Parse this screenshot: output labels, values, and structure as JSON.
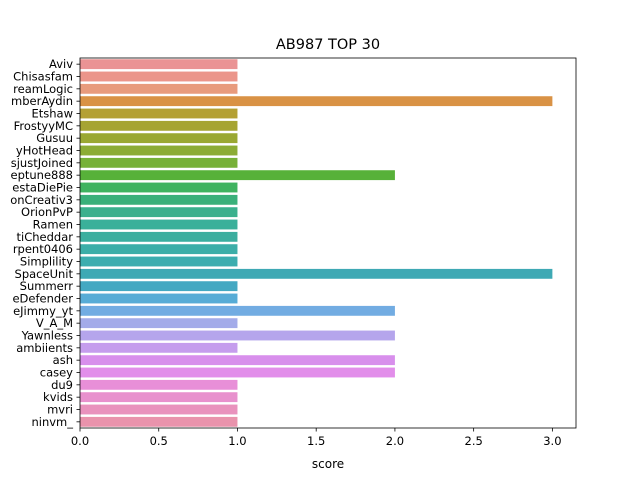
{
  "chart_data": {
    "type": "bar",
    "orientation": "horizontal",
    "title": "AB987 TOP 30",
    "xlabel": "score",
    "ylabel": "",
    "xlim": [
      0,
      3.15
    ],
    "xticks": [
      0.0,
      0.5,
      1.0,
      1.5,
      2.0,
      2.5,
      3.0
    ],
    "xtick_labels": [
      "0.0",
      "0.5",
      "1.0",
      "1.5",
      "2.0",
      "2.5",
      "3.0"
    ],
    "grid": false,
    "legend": "none",
    "categories": [
      "Aviv",
      "Chisasfam",
      "reamLogic",
      "mberAydin",
      "Etshaw",
      "FrostyyMC",
      "Gusuu",
      "yHotHead",
      "sjustJoined",
      "eptune888",
      "estaDiePie",
      "onCreativ3",
      "OrionPvP",
      "Ramen",
      "tiCheddar",
      "rpent0406",
      "Simplility",
      "SpaceUnit",
      "Summerr",
      "eDefender",
      "eJimmy_yt",
      "V_A_M",
      "Yawnless",
      "ambiients",
      "ash",
      "casey",
      "du9",
      "kvids",
      "mvri",
      "ninvm_"
    ],
    "values": [
      1,
      1,
      1,
      3,
      1,
      1,
      1,
      1,
      1,
      2,
      1,
      1,
      1,
      1,
      1,
      1,
      1,
      3,
      1,
      1,
      2,
      1,
      2,
      1,
      2,
      2,
      1,
      1,
      1,
      1
    ],
    "colors": [
      "#ea9394",
      "#eb958a",
      "#e89b7d",
      "#d99245",
      "#b4a033",
      "#a6a432",
      "#9aa832",
      "#8cac35",
      "#77b138",
      "#57b139",
      "#3fb360",
      "#3ab07a",
      "#3bb08d",
      "#3ab09a",
      "#3bae9f",
      "#3caea8",
      "#3cadaf",
      "#3ea9b4",
      "#44a8c2",
      "#57acd6",
      "#72ace2",
      "#a3abe9",
      "#b5a5ec",
      "#c59ded",
      "#d88fec",
      "#e28eea",
      "#e88fd8",
      "#e891cd",
      "#e992bd",
      "#e993ac"
    ]
  }
}
